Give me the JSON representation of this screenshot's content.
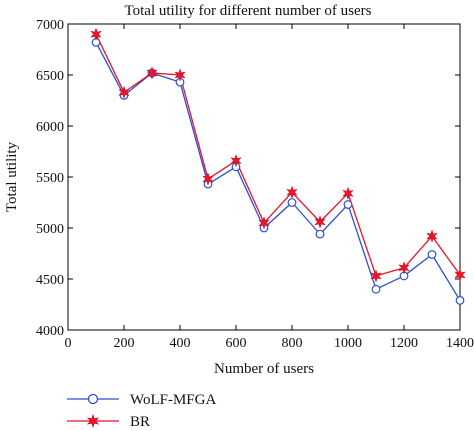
{
  "chart_data": {
    "type": "line",
    "title": "Total utility for different number of users",
    "xlabel": "Number of users",
    "ylabel": "Total utility",
    "xlim": [
      0,
      1400
    ],
    "ylim": [
      4000,
      7000
    ],
    "xticks": [
      0,
      200,
      400,
      600,
      800,
      1000,
      1200,
      1400
    ],
    "yticks": [
      4000,
      4500,
      5000,
      5500,
      6000,
      6500,
      7000
    ],
    "grid": false,
    "legend_position": "below",
    "x": [
      100,
      200,
      300,
      400,
      500,
      600,
      700,
      800,
      900,
      1000,
      1100,
      1200,
      1300,
      1400
    ],
    "series": [
      {
        "name": "WoLF-MFGA",
        "color": "#2b4fd8",
        "marker": "circle",
        "values": [
          6820,
          6300,
          6520,
          6430,
          5430,
          5600,
          5000,
          5250,
          4940,
          5230,
          4400,
          4530,
          4740,
          4290
        ]
      },
      {
        "name": "BR",
        "color": "#e8152a",
        "marker": "star",
        "values": [
          6900,
          6330,
          6520,
          6500,
          5480,
          5660,
          5050,
          5350,
          5060,
          5340,
          4530,
          4610,
          4920,
          4540
        ]
      }
    ]
  }
}
